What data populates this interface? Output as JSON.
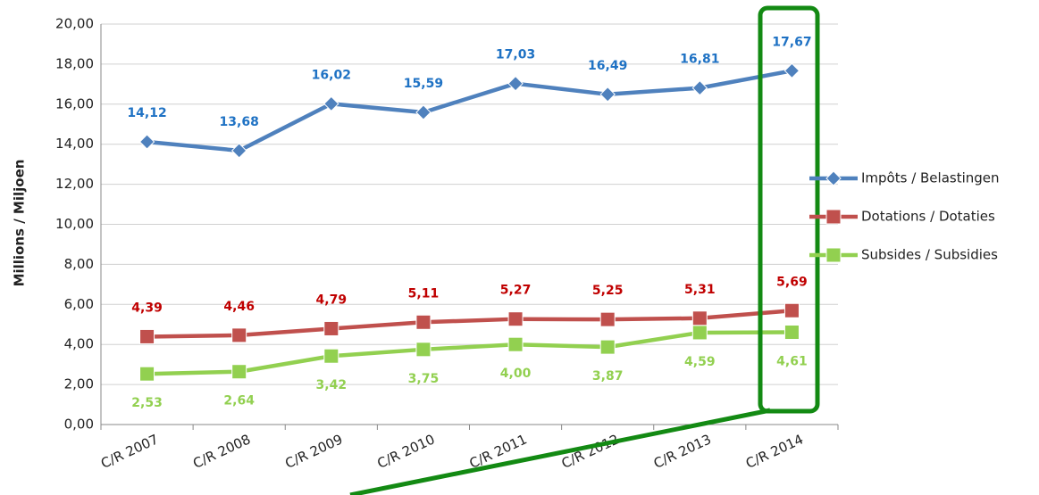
{
  "chart_data": {
    "type": "line",
    "y_label": "Millions / Miljoen",
    "categories": [
      "C/R 2007",
      "C/R 2008",
      "C/R 2009",
      "C/R 2010",
      "C/R 2011",
      "C/R 2012",
      "C/R 2013",
      "C/R 2014"
    ],
    "series": [
      {
        "name": "Impôts / Belastingen",
        "color": "#4f81bd",
        "label_color": "#1f72c4",
        "marker": "diamond",
        "label_position": "above",
        "values": [
          14.12,
          13.68,
          16.02,
          15.59,
          17.03,
          16.49,
          16.81,
          17.67
        ],
        "value_labels": [
          "14,12",
          "13,68",
          "16,02",
          "15,59",
          "17,03",
          "16,49",
          "16,81",
          "17,67"
        ]
      },
      {
        "name": "Dotations / Dotaties",
        "color": "#c0504d",
        "label_color": "#c00000",
        "marker": "square",
        "label_position": "above",
        "values": [
          4.39,
          4.46,
          4.79,
          5.11,
          5.27,
          5.25,
          5.31,
          5.69
        ],
        "value_labels": [
          "4,39",
          "4,46",
          "4,79",
          "5,11",
          "5,27",
          "5,25",
          "5,31",
          "5,69"
        ]
      },
      {
        "name": "Subsides / Subsidies",
        "color": "#92d050",
        "label_color": "#92d050",
        "marker": "square",
        "label_position": "below",
        "values": [
          2.53,
          2.64,
          3.42,
          3.75,
          4.0,
          3.87,
          4.59,
          4.61
        ],
        "value_labels": [
          "2,53",
          "2,64",
          "3,42",
          "3,75",
          "4,00",
          "3,87",
          "4,59",
          "4,61"
        ]
      }
    ],
    "ylim": [
      0,
      20
    ],
    "yticks": [
      {
        "value": 0,
        "label": "0,00"
      },
      {
        "value": 2,
        "label": "2,00"
      },
      {
        "value": 4,
        "label": "4,00"
      },
      {
        "value": 6,
        "label": "6,00"
      },
      {
        "value": 8,
        "label": "8,00"
      },
      {
        "value": 10,
        "label": "10,00"
      },
      {
        "value": 12,
        "label": "12,00"
      },
      {
        "value": 14,
        "label": "14,00"
      },
      {
        "value": 16,
        "label": "16,00"
      },
      {
        "value": 18,
        "label": "18,00"
      },
      {
        "value": 20,
        "label": "20,00"
      }
    ],
    "grid": true,
    "legend": "right"
  }
}
